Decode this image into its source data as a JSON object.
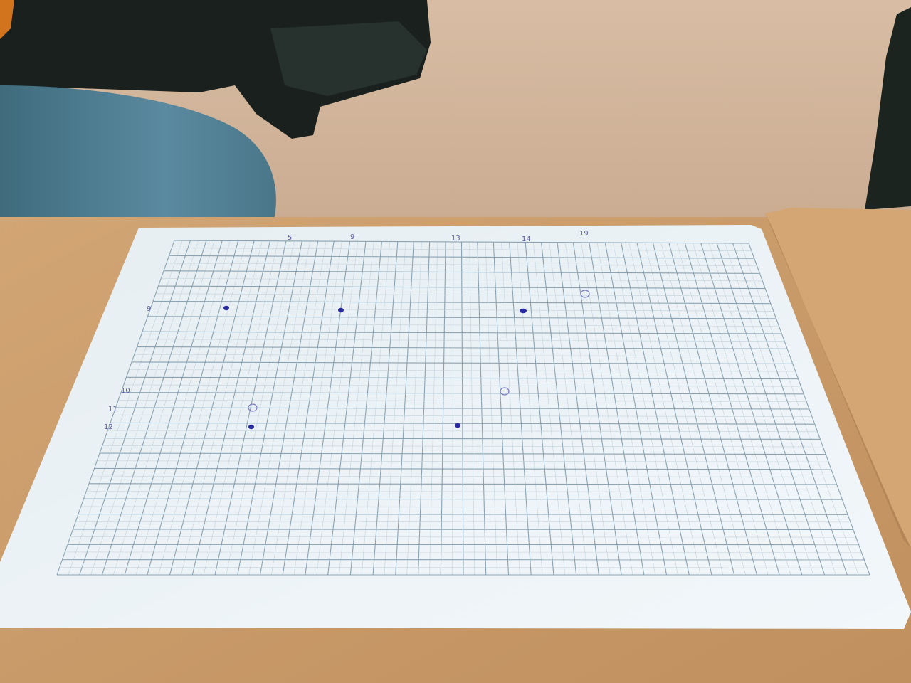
{
  "photo": {
    "subject": "graph paper with plotted points on a wooden desk",
    "colors": {
      "floor": "#d2b59c",
      "floor_shadow": "#b89a80",
      "desk": "#c89b6a",
      "desk_light": "#d9ae7c",
      "paper": "#eef4f8",
      "grid_major": "#7f98a8",
      "grid_minor": "#b9cbd6",
      "ink": "#2a2aa0",
      "jeans": "#4f7e90",
      "dark_objects": "#1c2220"
    }
  },
  "graph_paper": {
    "top_labels": [
      "5",
      "9",
      "13",
      "14",
      "19"
    ],
    "left_labels": [
      "9",
      "10",
      "11",
      "12"
    ],
    "points": [
      {
        "name": "dot-1",
        "style": "filled"
      },
      {
        "name": "dot-2",
        "style": "filled"
      },
      {
        "name": "dot-3",
        "style": "filled"
      },
      {
        "name": "dot-4",
        "style": "filled"
      },
      {
        "name": "dot-5",
        "style": "filled"
      },
      {
        "name": "circle-1",
        "style": "open"
      },
      {
        "name": "circle-2",
        "style": "open"
      },
      {
        "name": "circle-3",
        "style": "open"
      }
    ]
  }
}
